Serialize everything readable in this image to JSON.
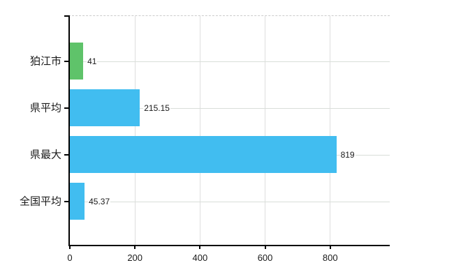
{
  "chart_data": {
    "type": "bar",
    "orientation": "horizontal",
    "title": "",
    "xlabel": "",
    "ylabel": "",
    "categories": [
      "狛江市",
      "県平均",
      "県最大",
      "全国平均"
    ],
    "values": [
      41,
      215.15,
      819,
      45.37
    ],
    "value_labels": [
      "41",
      "215.15",
      "819",
      "45.37"
    ],
    "series_colors": [
      "#5fc36a",
      "#41bdf0",
      "#41bdf0",
      "#41bdf0"
    ],
    "xlim": [
      0,
      983
    ],
    "xticks": [
      0,
      200,
      400,
      600,
      800
    ],
    "xtick_labels": [
      "0",
      "200",
      "400",
      "600",
      "800"
    ],
    "grid": true,
    "legend": false
  },
  "colors": {
    "background": "#ffffff",
    "axis": "#000000",
    "text": "#1a1a1a",
    "grid_vertical": "#dedede",
    "grid_horizontal": "#d9ded9",
    "bar_blue": "#41bdf0",
    "bar_green": "#5fc36a"
  }
}
